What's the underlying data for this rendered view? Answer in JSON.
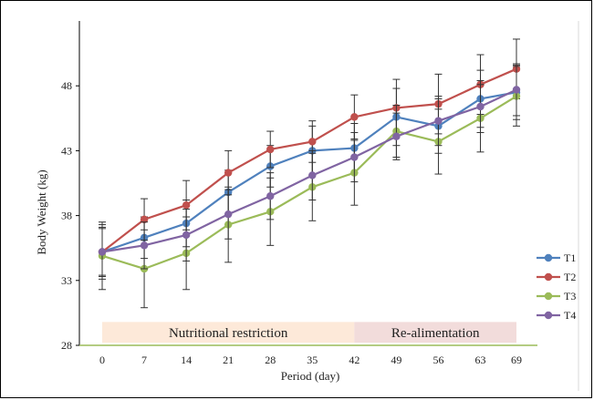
{
  "chart_data": {
    "type": "line",
    "title": "",
    "xlabel": "Period (day)",
    "ylabel": "Body Weight (kg)",
    "x": [
      0,
      7,
      14,
      21,
      28,
      35,
      42,
      49,
      56,
      63,
      69
    ],
    "x_tick_labels": [
      "0",
      "7",
      "14",
      "21",
      "28",
      "35",
      "42",
      "49",
      "56",
      "63",
      "69"
    ],
    "ylim": [
      28,
      53
    ],
    "y_ticks": [
      28,
      33,
      38,
      43,
      48
    ],
    "y_tick_labels": [
      "28",
      "33",
      "38",
      "43",
      "48"
    ],
    "grid": false,
    "legend_position": "right",
    "series": [
      {
        "name": "T1",
        "color": "#4f81bd",
        "values": [
          35.2,
          36.3,
          37.4,
          39.8,
          41.8,
          43.0,
          43.2,
          45.6,
          44.9,
          47.0,
          47.5
        ],
        "error": [
          1.8,
          1.6,
          1.8,
          1.7,
          1.6,
          1.9,
          1.9,
          2.2,
          2.1,
          2.2,
          2.1
        ]
      },
      {
        "name": "T2",
        "color": "#c0504d",
        "values": [
          35.2,
          37.7,
          38.8,
          41.3,
          43.1,
          43.7,
          45.6,
          46.3,
          46.6,
          48.1,
          49.3
        ],
        "error": [
          2.1,
          1.6,
          1.9,
          1.7,
          1.4,
          1.6,
          1.7,
          2.2,
          2.3,
          2.3,
          2.3
        ]
      },
      {
        "name": "T3",
        "color": "#9bbb59",
        "values": [
          34.9,
          33.9,
          35.1,
          37.3,
          38.3,
          40.2,
          41.3,
          44.5,
          43.7,
          45.5,
          47.2
        ],
        "error": [
          2.6,
          3.0,
          2.8,
          2.9,
          2.6,
          2.6,
          2.5,
          2.0,
          2.5,
          2.6,
          2.3
        ]
      },
      {
        "name": "T4",
        "color": "#8064a2",
        "values": [
          35.2,
          35.7,
          36.5,
          38.1,
          39.5,
          41.1,
          42.5,
          44.1,
          45.3,
          46.4,
          47.7
        ],
        "error": [
          1.9,
          1.8,
          2.0,
          1.9,
          1.8,
          1.9,
          1.9,
          1.8,
          1.9,
          2.0,
          2.0
        ]
      }
    ],
    "phases": [
      {
        "label": "Nutritional restriction",
        "x_start": 0,
        "x_end": 42,
        "color": "#fde9d9"
      },
      {
        "label": "Re-alimentation",
        "x_start": 42,
        "x_end": 69,
        "color": "#f2dcdb"
      }
    ],
    "axis_line_color": "#9bbb59"
  }
}
